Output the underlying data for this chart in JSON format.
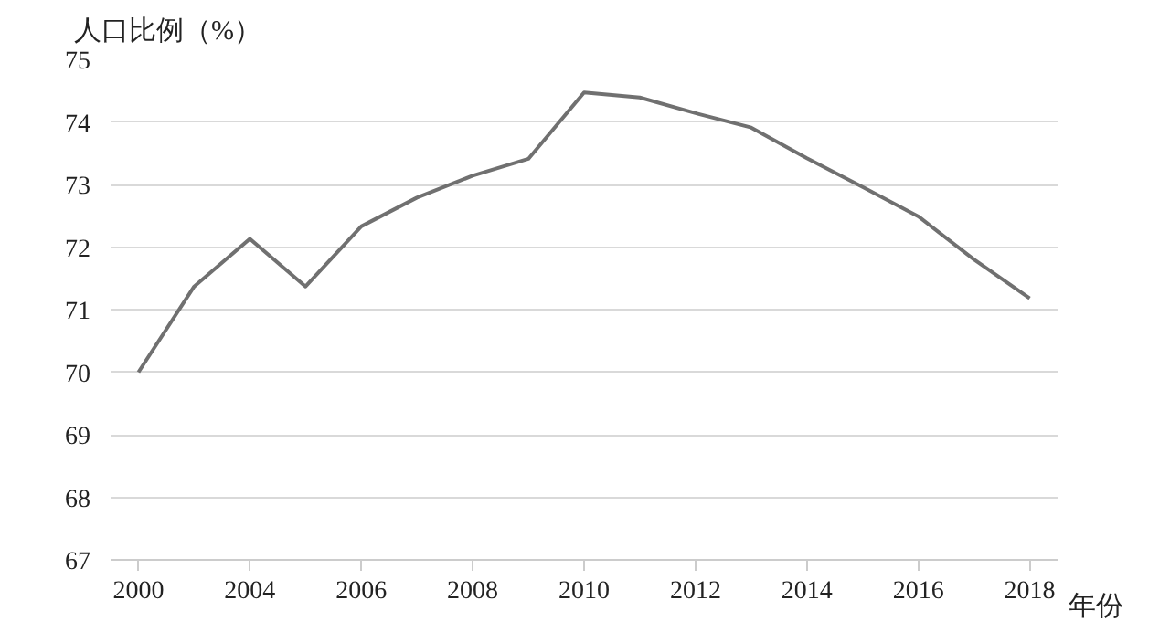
{
  "chart_data": {
    "type": "line",
    "ylabel": "人口比例（%）",
    "xlabel": "年份",
    "categories": [
      "2000",
      null,
      "2004",
      null,
      "2006",
      null,
      "2008",
      null,
      "2010",
      null,
      "2012",
      null,
      "2014",
      null,
      "2016",
      null,
      "2018"
    ],
    "series": [
      {
        "color": "#707070",
        "values": [
          70.0,
          71.37,
          72.13,
          71.37,
          72.33,
          72.79,
          73.14,
          73.41,
          74.47,
          74.39,
          74.14,
          73.91,
          73.42,
          72.96,
          72.49,
          71.8,
          71.18
        ]
      }
    ],
    "ylim": [
      67,
      75
    ],
    "yticks": [
      67,
      68,
      69,
      70,
      71,
      72,
      73,
      74,
      75
    ],
    "grid": "y",
    "marker": "none",
    "line_style": "solid"
  }
}
